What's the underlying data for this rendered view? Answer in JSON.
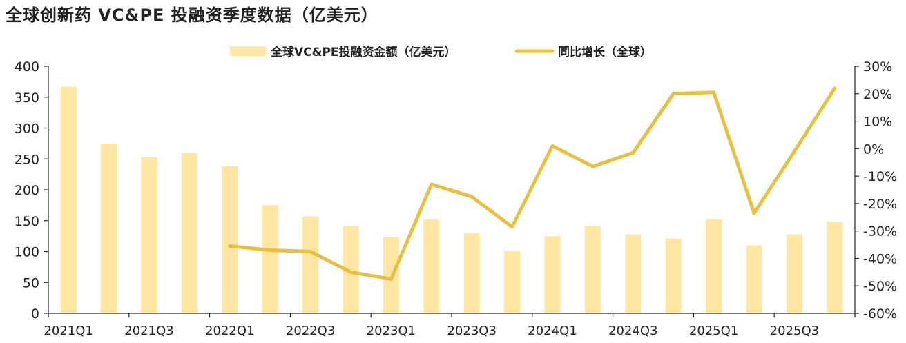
{
  "title": "全球创新药 VC&PE 投融资季度数据（亿美元）",
  "colors": {
    "bar": "#FFE6A3",
    "line": "#E8BF3F",
    "axis": "#222222"
  },
  "chart_data": {
    "type": "bar+line",
    "title": "全球创新药 VC&PE 投融资季度数据（亿美元）",
    "legend_position": "top",
    "grid": false,
    "categories": [
      "2021Q1",
      "2021Q2",
      "2021Q3",
      "2021Q4",
      "2022Q1",
      "2022Q2",
      "2022Q3",
      "2022Q4",
      "2023Q1",
      "2023Q2",
      "2023Q3",
      "2023Q4",
      "2024Q1",
      "2024Q2",
      "2024Q3",
      "2024Q4",
      "2025Q1",
      "2025Q2",
      "2025Q3",
      "2025Q4"
    ],
    "x_tick_labels": [
      "2021Q1",
      "2021Q3",
      "2022Q1",
      "2022Q3",
      "2023Q1",
      "2023Q3",
      "2024Q1",
      "2024Q3",
      "2025Q1",
      "2025Q3"
    ],
    "series": [
      {
        "name": "全球VC&PE投融资金额（亿美元）",
        "type": "bar",
        "axis": "left",
        "values": [
          367,
          275,
          253,
          260,
          238,
          175,
          157,
          141,
          123,
          152,
          130,
          101,
          125,
          141,
          128,
          121,
          152,
          110,
          128,
          148
        ]
      },
      {
        "name": "同比增长（全球）",
        "type": "line",
        "axis": "right",
        "unit": "%",
        "values": [
          null,
          null,
          null,
          null,
          -35.5,
          -37,
          -37.5,
          -45,
          -47.5,
          -13,
          -17.5,
          -28.5,
          1,
          -6.5,
          -1.5,
          20,
          20.5,
          -23.5,
          -1,
          22
        ]
      }
    ],
    "y_left": {
      "lim": [
        0,
        400
      ],
      "ticks": [
        "0",
        "50",
        "100",
        "150",
        "200",
        "250",
        "300",
        "350",
        "400"
      ]
    },
    "y_right": {
      "lim": [
        -60,
        30
      ],
      "ticks": [
        "-60%",
        "-50%",
        "-40%",
        "-30%",
        "-20%",
        "-10%",
        "0%",
        "10%",
        "20%",
        "30%"
      ]
    }
  }
}
